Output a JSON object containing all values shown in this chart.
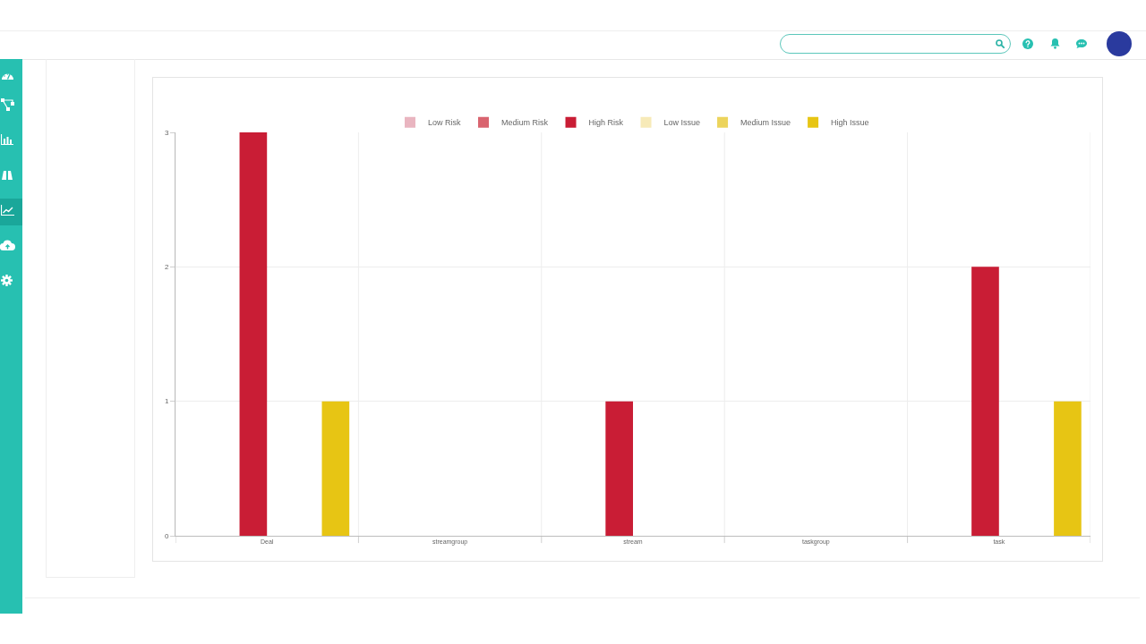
{
  "chart_data": {
    "type": "bar",
    "categories": [
      "Deal",
      "streamgroup",
      "stream",
      "taskgroup",
      "task"
    ],
    "series": [
      {
        "name": "Low Risk",
        "color": "#e9b5c0",
        "values": [
          0,
          0,
          0,
          0,
          0
        ]
      },
      {
        "name": "Medium Risk",
        "color": "#d9646f",
        "values": [
          0,
          0,
          0,
          0,
          0
        ]
      },
      {
        "name": "High Risk",
        "color": "#c91d35",
        "values": [
          3,
          0,
          1,
          0,
          2
        ]
      },
      {
        "name": "Low Issue",
        "color": "#f7eab8",
        "values": [
          0,
          0,
          0,
          0,
          0
        ]
      },
      {
        "name": "Medium Issue",
        "color": "#ecd45c",
        "values": [
          0,
          0,
          0,
          0,
          0
        ]
      },
      {
        "name": "High Issue",
        "color": "#e7c514",
        "values": [
          1,
          0,
          0,
          0,
          1
        ]
      }
    ],
    "ylim": [
      0,
      3
    ],
    "yticks": [
      0,
      1,
      2,
      3
    ],
    "grid": true,
    "legend": "top"
  }
}
